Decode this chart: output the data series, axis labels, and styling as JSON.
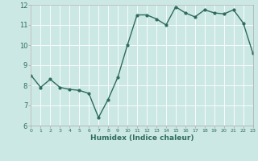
{
  "x": [
    0,
    1,
    2,
    3,
    4,
    5,
    6,
    7,
    8,
    9,
    10,
    11,
    12,
    13,
    14,
    15,
    16,
    17,
    18,
    19,
    20,
    21,
    22,
    23
  ],
  "y": [
    8.5,
    7.9,
    8.3,
    7.9,
    7.8,
    7.75,
    7.6,
    6.4,
    7.3,
    8.4,
    10.0,
    11.5,
    11.5,
    11.3,
    11.0,
    11.9,
    11.6,
    11.4,
    11.75,
    11.6,
    11.55,
    11.75,
    11.1,
    9.6
  ],
  "xlabel": "Humidex (Indice chaleur)",
  "ylim": [
    6,
    12
  ],
  "xlim": [
    0,
    23
  ],
  "yticks": [
    6,
    7,
    8,
    9,
    10,
    11,
    12
  ],
  "xticks": [
    0,
    1,
    2,
    3,
    4,
    5,
    6,
    7,
    8,
    9,
    10,
    11,
    12,
    13,
    14,
    15,
    16,
    17,
    18,
    19,
    20,
    21,
    22,
    23
  ],
  "line_color": "#2e6b5e",
  "bg_color": "#cce8e4",
  "grid_color": "#ffffff",
  "marker": "o",
  "marker_size": 2.0,
  "line_width": 1.0
}
